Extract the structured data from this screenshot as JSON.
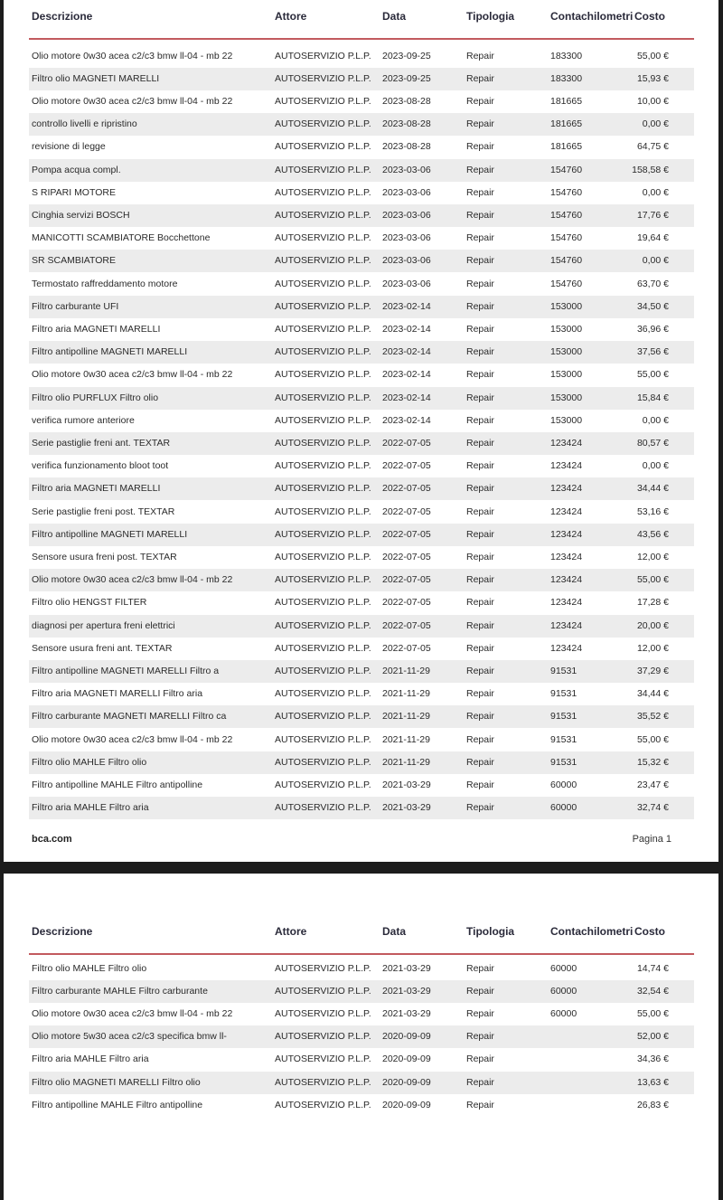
{
  "headers": [
    "Descrizione",
    "Attore",
    "Data",
    "Tipologia",
    "Contachilometri",
    "Costo"
  ],
  "page1_rows": [
    [
      "Olio motore 0w30 acea c2/c3 bmw ll-04 - mb 22",
      "AUTOSERVIZIO P.L.P.",
      "2023-09-25",
      "Repair",
      "183300",
      "55,00 €"
    ],
    [
      "Filtro olio MAGNETI MARELLI",
      "AUTOSERVIZIO P.L.P.",
      "2023-09-25",
      "Repair",
      "183300",
      "15,93 €"
    ],
    [
      "Olio motore 0w30 acea c2/c3 bmw ll-04 - mb 22",
      "AUTOSERVIZIO P.L.P.",
      "2023-08-28",
      "Repair",
      "181665",
      "10,00 €"
    ],
    [
      "controllo livelli e ripristino",
      "AUTOSERVIZIO P.L.P.",
      "2023-08-28",
      "Repair",
      "181665",
      "0,00 €"
    ],
    [
      "revisione di legge",
      "AUTOSERVIZIO P.L.P.",
      "2023-08-28",
      "Repair",
      "181665",
      "64,75 €"
    ],
    [
      "Pompa acqua compl.",
      "AUTOSERVIZIO P.L.P.",
      "2023-03-06",
      "Repair",
      "154760",
      "158,58 €"
    ],
    [
      "S RIPARI MOTORE",
      "AUTOSERVIZIO P.L.P.",
      "2023-03-06",
      "Repair",
      "154760",
      "0,00 €"
    ],
    [
      "Cinghia servizi BOSCH",
      "AUTOSERVIZIO P.L.P.",
      "2023-03-06",
      "Repair",
      "154760",
      "17,76 €"
    ],
    [
      "MANICOTTI SCAMBIATORE  Bocchettone",
      "AUTOSERVIZIO P.L.P.",
      "2023-03-06",
      "Repair",
      "154760",
      "19,64 €"
    ],
    [
      "SR SCAMBIATORE",
      "AUTOSERVIZIO P.L.P.",
      "2023-03-06",
      "Repair",
      "154760",
      "0,00 €"
    ],
    [
      "Termostato raffreddamento motore",
      "AUTOSERVIZIO P.L.P.",
      "2023-03-06",
      "Repair",
      "154760",
      "63,70 €"
    ],
    [
      "Filtro carburante UFI",
      "AUTOSERVIZIO P.L.P.",
      "2023-02-14",
      "Repair",
      "153000",
      "34,50 €"
    ],
    [
      "Filtro aria MAGNETI MARELLI",
      "AUTOSERVIZIO P.L.P.",
      "2023-02-14",
      "Repair",
      "153000",
      "36,96 €"
    ],
    [
      "Filtro antipolline MAGNETI MARELLI",
      "AUTOSERVIZIO P.L.P.",
      "2023-02-14",
      "Repair",
      "153000",
      "37,56 €"
    ],
    [
      "Olio motore 0w30 acea c2/c3 bmw ll-04 - mb 22",
      "AUTOSERVIZIO P.L.P.",
      "2023-02-14",
      "Repair",
      "153000",
      "55,00 €"
    ],
    [
      "Filtro olio PURFLUX  Filtro olio",
      "AUTOSERVIZIO P.L.P.",
      "2023-02-14",
      "Repair",
      "153000",
      "15,84 €"
    ],
    [
      "verifica rumore anteriore",
      "AUTOSERVIZIO P.L.P.",
      "2023-02-14",
      "Repair",
      "153000",
      "0,00 €"
    ],
    [
      "Serie pastiglie freni ant. TEXTAR",
      "AUTOSERVIZIO P.L.P.",
      "2022-07-05",
      "Repair",
      "123424",
      "80,57 €"
    ],
    [
      "verifica funzionamento bloot toot",
      "AUTOSERVIZIO P.L.P.",
      "2022-07-05",
      "Repair",
      "123424",
      "0,00 €"
    ],
    [
      "Filtro aria MAGNETI MARELLI",
      "AUTOSERVIZIO P.L.P.",
      "2022-07-05",
      "Repair",
      "123424",
      "34,44 €"
    ],
    [
      "Serie pastiglie freni post. TEXTAR",
      "AUTOSERVIZIO P.L.P.",
      "2022-07-05",
      "Repair",
      "123424",
      "53,16 €"
    ],
    [
      "Filtro antipolline MAGNETI MARELLI",
      "AUTOSERVIZIO P.L.P.",
      "2022-07-05",
      "Repair",
      "123424",
      "43,56 €"
    ],
    [
      "Sensore usura freni post. TEXTAR",
      "AUTOSERVIZIO P.L.P.",
      "2022-07-05",
      "Repair",
      "123424",
      "12,00 €"
    ],
    [
      "Olio motore 0w30 acea c2/c3 bmw ll-04 - mb 22",
      "AUTOSERVIZIO P.L.P.",
      "2022-07-05",
      "Repair",
      "123424",
      "55,00 €"
    ],
    [
      "Filtro olio HENGST FILTER",
      "AUTOSERVIZIO P.L.P.",
      "2022-07-05",
      "Repair",
      "123424",
      "17,28 €"
    ],
    [
      "diagnosi per apertura freni elettrici",
      "AUTOSERVIZIO P.L.P.",
      "2022-07-05",
      "Repair",
      "123424",
      "20,00 €"
    ],
    [
      "Sensore usura freni ant. TEXTAR",
      "AUTOSERVIZIO P.L.P.",
      "2022-07-05",
      "Repair",
      "123424",
      "12,00 €"
    ],
    [
      "Filtro antipolline MAGNETI MARELLI  Filtro a",
      "AUTOSERVIZIO P.L.P.",
      "2021-11-29",
      "Repair",
      "91531",
      "37,29 €"
    ],
    [
      "Filtro aria MAGNETI MARELLI  Filtro aria",
      "AUTOSERVIZIO P.L.P.",
      "2021-11-29",
      "Repair",
      "91531",
      "34,44 €"
    ],
    [
      "Filtro carburante MAGNETI MARELLI  Filtro ca",
      "AUTOSERVIZIO P.L.P.",
      "2021-11-29",
      "Repair",
      "91531",
      "35,52 €"
    ],
    [
      "Olio motore 0w30 acea c2/c3 bmw ll-04 - mb 22",
      "AUTOSERVIZIO P.L.P.",
      "2021-11-29",
      "Repair",
      "91531",
      "55,00 €"
    ],
    [
      "Filtro olio MAHLE  Filtro olio",
      "AUTOSERVIZIO P.L.P.",
      "2021-11-29",
      "Repair",
      "91531",
      "15,32 €"
    ],
    [
      "Filtro antipolline MAHLE  Filtro antipolline",
      "AUTOSERVIZIO P.L.P.",
      "2021-03-29",
      "Repair",
      "60000",
      "23,47 €"
    ],
    [
      "Filtro aria MAHLE  Filtro aria",
      "AUTOSERVIZIO P.L.P.",
      "2021-03-29",
      "Repair",
      "60000",
      "32,74 €"
    ]
  ],
  "page2_rows": [
    [
      "Filtro olio MAHLE  Filtro olio",
      "AUTOSERVIZIO P.L.P.",
      "2021-03-29",
      "Repair",
      "60000",
      "14,74 €"
    ],
    [
      "Filtro carburante MAHLE  Filtro carburante",
      "AUTOSERVIZIO P.L.P.",
      "2021-03-29",
      "Repair",
      "60000",
      "32,54 €"
    ],
    [
      "Olio motore 0w30 acea c2/c3 bmw ll-04 - mb 22",
      "AUTOSERVIZIO P.L.P.",
      "2021-03-29",
      "Repair",
      "60000",
      "55,00 €"
    ],
    [
      "Olio motore 5w30 acea c2/c3 specifica bmw ll-",
      "AUTOSERVIZIO P.L.P.",
      "2020-09-09",
      "Repair",
      "",
      "52,00 €"
    ],
    [
      "Filtro aria MAHLE  Filtro aria",
      "AUTOSERVIZIO P.L.P.",
      "2020-09-09",
      "Repair",
      "",
      "34,36 €"
    ],
    [
      "Filtro olio MAGNETI MARELLI  Filtro olio",
      "AUTOSERVIZIO P.L.P.",
      "2020-09-09",
      "Repair",
      "",
      "13,63 €"
    ],
    [
      "Filtro antipolline MAHLE  Filtro antipolline",
      "AUTOSERVIZIO P.L.P.",
      "2020-09-09",
      "Repair",
      "",
      "26,83 €"
    ]
  ],
  "footer": {
    "brand": "bca.com",
    "page_label": "Pagina 1"
  },
  "colors": {
    "rule": "#c25a5e",
    "zebra": "#ececec",
    "background": "#1c1c1c"
  }
}
